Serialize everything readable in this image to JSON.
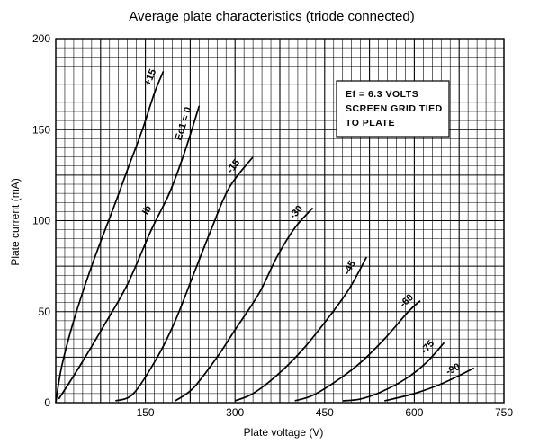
{
  "chart_data": {
    "type": "line",
    "title": "Average plate characteristics (triode connected)",
    "xlabel": "Plate voltage (V)",
    "ylabel": "Plate current (mA)",
    "xlim": [
      0,
      750
    ],
    "ylim": [
      0,
      200
    ],
    "x_ticks": [
      "150",
      "300",
      "450",
      "600",
      "750"
    ],
    "y_ticks": [
      "0",
      "50",
      "100",
      "150",
      "200"
    ],
    "grid": true,
    "annotation": [
      "Ef = 6.3 VOLTS",
      "SCREEN GRID TIED",
      "TO PLATE"
    ],
    "ib_label": "Ib",
    "series": [
      {
        "name": "+15",
        "points": [
          [
            0,
            0
          ],
          [
            10,
            20
          ],
          [
            30,
            45
          ],
          [
            60,
            75
          ],
          [
            100,
            110
          ],
          [
            120,
            128
          ],
          [
            145,
            150
          ],
          [
            165,
            170
          ],
          [
            180,
            182
          ]
        ]
      },
      {
        "name": "Ec1 = 0",
        "points": [
          [
            5,
            2
          ],
          [
            40,
            20
          ],
          [
            80,
            42
          ],
          [
            120,
            65
          ],
          [
            160,
            95
          ],
          [
            190,
            115
          ],
          [
            215,
            137
          ],
          [
            240,
            163
          ]
        ]
      },
      {
        "name": "-15",
        "points": [
          [
            100,
            1
          ],
          [
            130,
            5
          ],
          [
            170,
            25
          ],
          [
            200,
            45
          ],
          [
            230,
            70
          ],
          [
            260,
            95
          ],
          [
            290,
            118
          ],
          [
            330,
            135
          ]
        ]
      },
      {
        "name": "-30",
        "points": [
          [
            200,
            1
          ],
          [
            230,
            8
          ],
          [
            270,
            25
          ],
          [
            300,
            40
          ],
          [
            340,
            60
          ],
          [
            370,
            80
          ],
          [
            400,
            96
          ],
          [
            430,
            107
          ]
        ]
      },
      {
        "name": "-45",
        "points": [
          [
            300,
            1
          ],
          [
            330,
            5
          ],
          [
            370,
            15
          ],
          [
            410,
            28
          ],
          [
            450,
            44
          ],
          [
            490,
            62
          ],
          [
            520,
            80
          ]
        ]
      },
      {
        "name": "-60",
        "points": [
          [
            400,
            1
          ],
          [
            430,
            4
          ],
          [
            470,
            12
          ],
          [
            510,
            22
          ],
          [
            550,
            35
          ],
          [
            590,
            50
          ],
          [
            610,
            56
          ]
        ]
      },
      {
        "name": "-75",
        "points": [
          [
            480,
            1
          ],
          [
            510,
            2
          ],
          [
            545,
            6
          ],
          [
            585,
            13
          ],
          [
            620,
            22
          ],
          [
            650,
            33
          ]
        ]
      },
      {
        "name": "-90",
        "points": [
          [
            550,
            1
          ],
          [
            600,
            5
          ],
          [
            650,
            11
          ],
          [
            700,
            19
          ]
        ]
      }
    ]
  }
}
